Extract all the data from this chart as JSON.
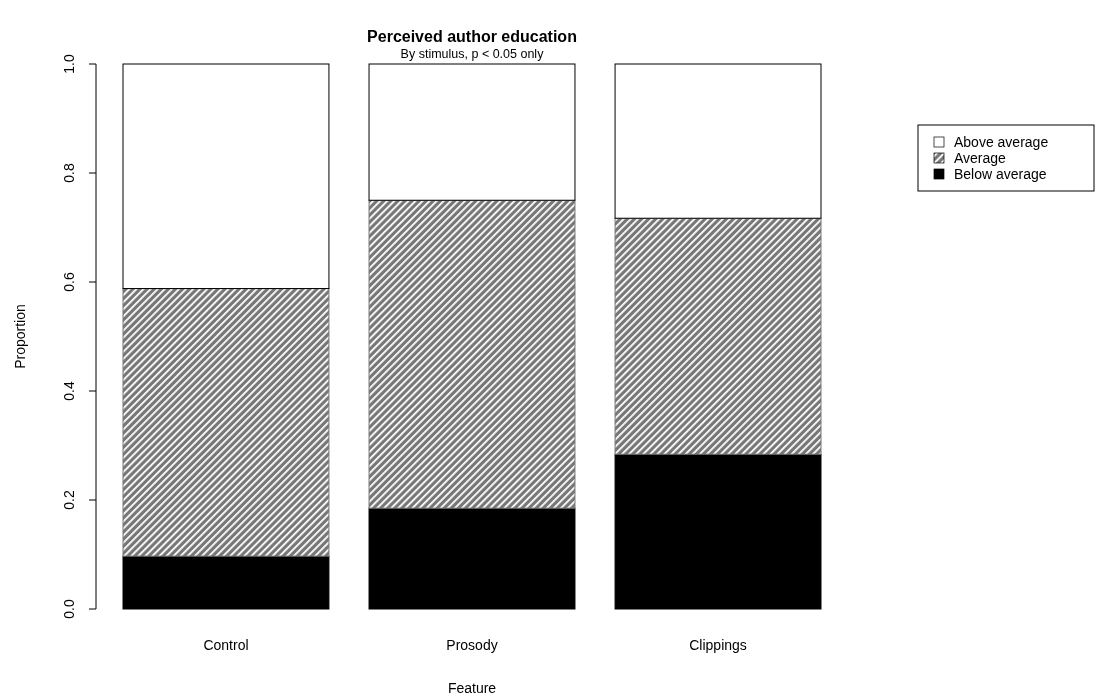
{
  "chart_data": {
    "type": "bar",
    "stacked": true,
    "title": "Perceived author education",
    "subtitle": "By stimulus, p < 0.05 only",
    "xlabel": "Feature",
    "ylabel": "Proportion",
    "categories": [
      "Control",
      "Prosody",
      "Clippings"
    ],
    "series": [
      {
        "name": "Below average",
        "color": "#000000",
        "values": [
          0.097,
          0.185,
          0.284
        ]
      },
      {
        "name": "Average",
        "color": "#777777",
        "values": [
          0.491,
          0.565,
          0.433
        ]
      },
      {
        "name": "Above average",
        "color": "#ffffff",
        "values": [
          0.412,
          0.25,
          0.283
        ]
      }
    ],
    "ylim": [
      0,
      1
    ],
    "yticks": [
      {
        "value": 0,
        "label": "0.0"
      },
      0.2,
      0.4,
      0.6,
      0.8,
      {
        "value": 1,
        "label": "1.0"
      }
    ],
    "legend": "right",
    "grid": false
  }
}
